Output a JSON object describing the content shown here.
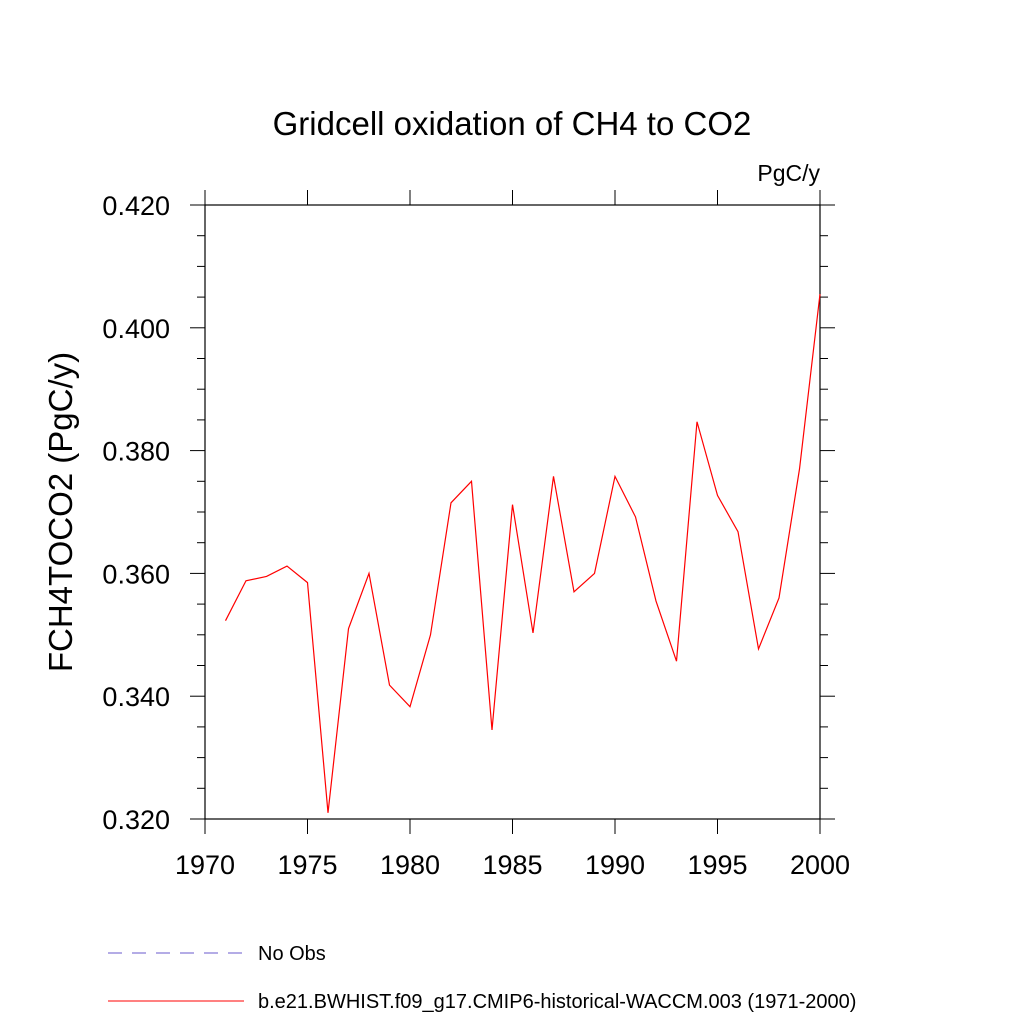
{
  "chart_data": {
    "type": "line",
    "title": "Gridcell oxidation of CH4 to CO2",
    "units_label": "PgC/y",
    "ylabel": "FCH4TOCO2  (PgC/y)",
    "xlabel": "",
    "xlim": [
      1970,
      2000
    ],
    "ylim": [
      0.32,
      0.42
    ],
    "x_ticks": [
      1970,
      1975,
      1980,
      1985,
      1990,
      1995,
      2000
    ],
    "x_tick_labels": [
      "1970",
      "1975",
      "1980",
      "1985",
      "1990",
      "1995",
      "2000"
    ],
    "y_ticks": [
      0.32,
      0.34,
      0.36,
      0.38,
      0.4,
      0.42
    ],
    "y_tick_labels": [
      "0.320",
      "0.340",
      "0.360",
      "0.380",
      "0.400",
      "0.420"
    ],
    "grid": false,
    "legend_position": "bottom",
    "series": [
      {
        "name": "b.e21.BWHIST.f09_g17.CMIP6-historical-WACCM.003 (1971-2000)",
        "color": "#ff0000",
        "style": "solid",
        "x": [
          1971,
          1972,
          1973,
          1974,
          1975,
          1976,
          1977,
          1978,
          1979,
          1980,
          1981,
          1982,
          1983,
          1984,
          1985,
          1986,
          1987,
          1988,
          1989,
          1990,
          1991,
          1992,
          1993,
          1994,
          1995,
          1996,
          1997,
          1998,
          1999,
          2000
        ],
        "values": [
          0.3523,
          0.3588,
          0.3595,
          0.3612,
          0.3585,
          0.321,
          0.351,
          0.36,
          0.3418,
          0.3383,
          0.35,
          0.3715,
          0.375,
          0.3345,
          0.3712,
          0.3503,
          0.3758,
          0.357,
          0.36,
          0.3758,
          0.3692,
          0.3555,
          0.3457,
          0.3847,
          0.3727,
          0.3668,
          0.3477,
          0.356,
          0.377,
          0.4055
        ]
      }
    ],
    "legend": [
      {
        "label": "No Obs",
        "color": "#6a5acd",
        "style": "dashed"
      },
      {
        "label": "b.e21.BWHIST.f09_g17.CMIP6-historical-WACCM.003 (1971-2000)",
        "color": "#ff0000",
        "style": "solid"
      }
    ]
  }
}
